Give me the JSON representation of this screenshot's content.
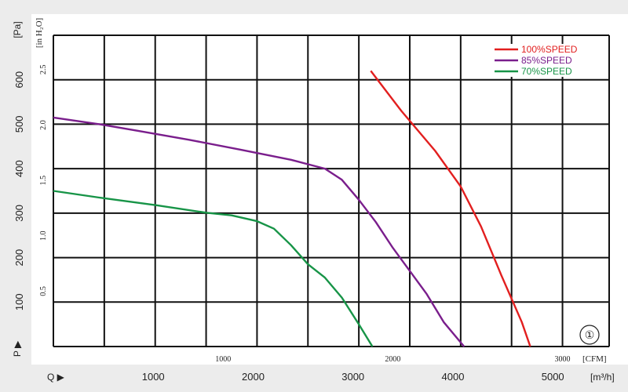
{
  "chart_data": {
    "type": "line",
    "x_axis_cfm": {
      "label": "[CFM]",
      "ticks": [
        1000,
        2000,
        3000
      ],
      "range": [
        0,
        3275
      ]
    },
    "x_axis_m3h": {
      "prefix": "Q ▶",
      "label": "[m³/h]",
      "ticks": [
        1000,
        2000,
        3000,
        4000,
        5000
      ]
    },
    "y_axis_pa": {
      "label": "[Pa]",
      "prefix": "P ▶",
      "ticks": [
        100,
        200,
        300,
        400,
        500,
        600
      ],
      "range": [
        0,
        700
      ]
    },
    "y_axis_inh2o": {
      "label": "[in H₂O]",
      "ticks": [
        "0.5",
        "1.0",
        "1.5",
        "2.0",
        "2.5"
      ],
      "tick_values": [
        0.5,
        1.0,
        1.5,
        2.0,
        2.5
      ]
    },
    "grid": true,
    "legend_position": "top-right",
    "badge": "①",
    "series": [
      {
        "name": "100%SPEED",
        "color": "#e21f1f",
        "points": [
          [
            1870,
            620
          ],
          [
            2050,
            530
          ],
          [
            2250,
            440
          ],
          [
            2400,
            360
          ],
          [
            2520,
            270
          ],
          [
            2640,
            160
          ],
          [
            2760,
            55
          ],
          [
            2810,
            0
          ]
        ]
      },
      {
        "name": "85%SPEED",
        "color": "#7a1e8c",
        "points": [
          [
            0,
            515
          ],
          [
            270,
            500
          ],
          [
            500,
            485
          ],
          [
            800,
            465
          ],
          [
            1100,
            443
          ],
          [
            1400,
            420
          ],
          [
            1500,
            410
          ],
          [
            1600,
            400
          ],
          [
            1700,
            375
          ],
          [
            1800,
            330
          ],
          [
            1900,
            280
          ],
          [
            2000,
            222
          ],
          [
            2100,
            170
          ],
          [
            2200,
            118
          ],
          [
            2300,
            55
          ],
          [
            2420,
            0
          ]
        ]
      },
      {
        "name": "70%SPEED",
        "color": "#179447",
        "points": [
          [
            0,
            350
          ],
          [
            270,
            335
          ],
          [
            600,
            318
          ],
          [
            900,
            301
          ],
          [
            1050,
            295
          ],
          [
            1200,
            282
          ],
          [
            1300,
            265
          ],
          [
            1400,
            228
          ],
          [
            1500,
            185
          ],
          [
            1600,
            155
          ],
          [
            1700,
            110
          ],
          [
            1800,
            50
          ],
          [
            1880,
            0
          ]
        ]
      }
    ]
  }
}
